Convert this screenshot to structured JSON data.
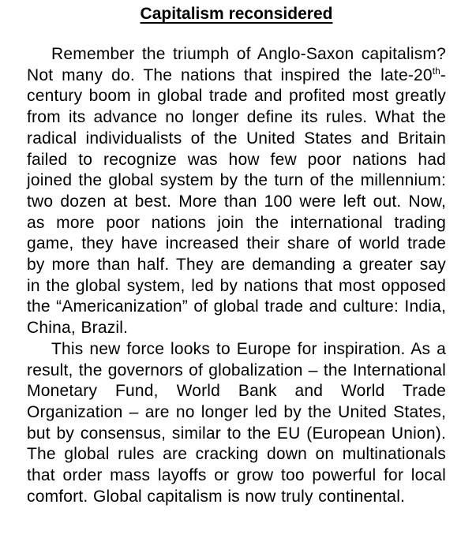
{
  "document": {
    "title": "Capitalism reconsidered",
    "paragraph1": {
      "part1": "Remember the triumph of Anglo-Saxon capitalism? Not many do. The nations that inspired the late-20",
      "superscript": "th",
      "part2": "-century boom in global trade and profited most greatly from its advance no longer define its rules. What the radical individualists of the United States and Britain failed to recognize was how few poor nations had joined the global system by the turn of the millennium: two dozen at best. More than 100 were left out. Now, as more poor nations join the international trading game, they have increased their share of world trade by more than half. They are demanding a greater say in the global system, led by nations that most opposed the “Americanization” of global trade and culture: India, China, Brazil."
    },
    "paragraph2": "This new force looks to Europe for inspiration. As a result, the governors of globalization – the International Monetary Fund, World Bank and World Trade Organization – are no longer led by the United States, but by consensus, similar to the EU (European Union). The global rules are cracking down on multinationals that order mass layoffs or grow too powerful for local comfort. Global capitalism is now truly continental."
  }
}
